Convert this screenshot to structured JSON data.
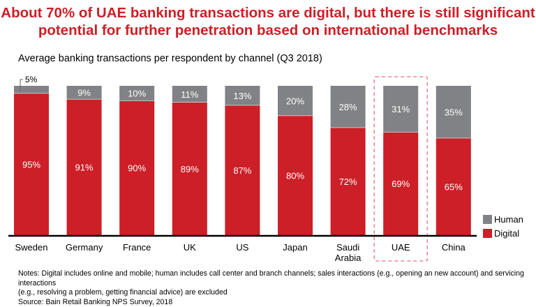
{
  "title_line1": "About 70% of UAE banking transactions are digital, but there is still significant",
  "title_line2": "potential for further penetration based on international benchmarks",
  "chart_data": {
    "type": "bar",
    "stacked": true,
    "title": "Average banking transactions per respondent by channel (Q3 2018)",
    "categories": [
      "Sweden",
      "Germany",
      "France",
      "UK",
      "US",
      "Japan",
      "Saudi Arabia",
      "UAE",
      "China"
    ],
    "series": [
      {
        "name": "Digital",
        "color": "#cc1f27",
        "values": [
          95,
          91,
          90,
          89,
          87,
          80,
          72,
          69,
          65
        ]
      },
      {
        "name": "Human",
        "color": "#808285",
        "values": [
          5,
          9,
          10,
          11,
          13,
          20,
          28,
          31,
          35
        ]
      }
    ],
    "ylim": [
      0,
      100
    ],
    "highlight": "UAE",
    "legend_position": "bottom-right",
    "grid": false
  },
  "notes": [
    "Notes: Digital includes online and mobile; human includes call center and branch channels; sales interactions (e.g., opening an new account) and servicing interactions",
    "(e.g., resolving a problem, getting financial advice) are excluded",
    "Source: Bain Retail Banking NPS Survey, 2018"
  ]
}
